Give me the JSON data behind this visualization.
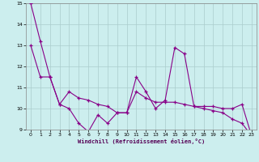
{
  "x": [
    0,
    1,
    2,
    3,
    4,
    5,
    6,
    7,
    8,
    9,
    10,
    11,
    12,
    13,
    14,
    15,
    16,
    17,
    18,
    19,
    20,
    21,
    22,
    23
  ],
  "windchill": [
    15.0,
    13.2,
    11.5,
    10.2,
    10.0,
    9.3,
    8.9,
    9.7,
    9.3,
    9.8,
    9.8,
    11.5,
    10.8,
    10.0,
    10.4,
    12.9,
    12.6,
    10.1,
    10.1,
    10.1,
    10.0,
    10.0,
    10.2,
    8.7
  ],
  "trend": [
    13.0,
    11.5,
    11.5,
    10.2,
    10.8,
    10.5,
    10.4,
    10.2,
    10.1,
    9.8,
    9.8,
    10.8,
    10.5,
    10.3,
    10.3,
    10.3,
    10.2,
    10.1,
    10.0,
    9.9,
    9.8,
    9.5,
    9.3,
    8.7
  ],
  "line_color": "#880088",
  "bg_color": "#cceeee",
  "grid_color": "#aacccc",
  "xlabel": "Windchill (Refroidissement éolien,°C)",
  "ylim": [
    9,
    15
  ],
  "xlim": [
    -0.5,
    23.5
  ],
  "yticks": [
    9,
    10,
    11,
    12,
    13,
    14,
    15
  ],
  "xticks": [
    0,
    1,
    2,
    3,
    4,
    5,
    6,
    7,
    8,
    9,
    10,
    11,
    12,
    13,
    14,
    15,
    16,
    17,
    18,
    19,
    20,
    21,
    22,
    23
  ]
}
